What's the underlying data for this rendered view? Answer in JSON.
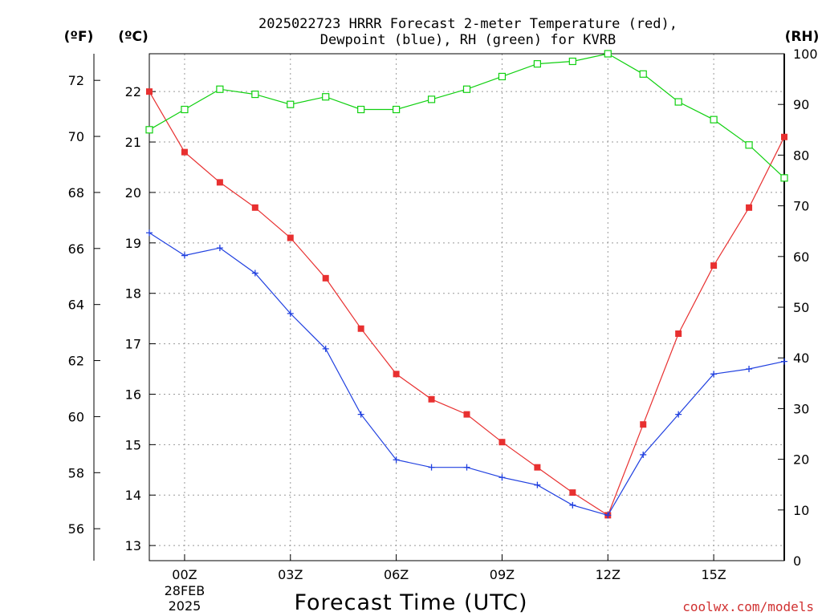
{
  "chart_data": {
    "type": "line",
    "title_line1": "2025022723 HRRR Forecast 2-meter Temperature (red),",
    "title_line2": "Dewpoint (blue), RH (green) for KVRB",
    "xlabel": "Forecast Time (UTC)",
    "credit": "coolwx.com/models",
    "unit_f": "(ºF)",
    "unit_c": "(ºC)",
    "unit_rh": "(RH)",
    "x_hours": [
      -1,
      0,
      1,
      2,
      3,
      4,
      5,
      6,
      7,
      8,
      9,
      10,
      11,
      12,
      13,
      14,
      15,
      16,
      17
    ],
    "x_range": [
      -1,
      17
    ],
    "x_ticks": [
      {
        "hour": 0,
        "label": "00Z",
        "sub1": "28FEB",
        "sub2": "2025"
      },
      {
        "hour": 3,
        "label": "03Z"
      },
      {
        "hour": 6,
        "label": "06Z"
      },
      {
        "hour": 9,
        "label": "09Z"
      },
      {
        "hour": 12,
        "label": "12Z"
      },
      {
        "hour": 15,
        "label": "15Z"
      }
    ],
    "c_range": [
      12.7,
      22.75
    ],
    "c_ticks": [
      13,
      14,
      15,
      16,
      17,
      18,
      19,
      20,
      21,
      22
    ],
    "f_ticks": [
      56,
      58,
      60,
      62,
      64,
      66,
      68,
      70,
      72
    ],
    "rh_range": [
      0,
      100
    ],
    "rh_ticks": [
      0,
      10,
      20,
      30,
      40,
      50,
      60,
      70,
      80,
      90,
      100
    ],
    "colors": {
      "temperature": "#e83030",
      "dewpoint": "#2040e0",
      "rh": "#10d010",
      "axis": "#000000"
    },
    "series": [
      {
        "key": "temperature",
        "values": [
          22.0,
          20.8,
          20.2,
          19.7,
          19.1,
          18.3,
          17.3,
          16.4,
          15.9,
          15.6,
          15.05,
          14.55,
          14.05,
          13.6,
          15.4,
          17.2,
          18.55,
          19.7,
          21.1
        ]
      },
      {
        "key": "dewpoint",
        "values": [
          19.2,
          18.75,
          18.9,
          18.4,
          17.6,
          16.9,
          15.6,
          14.7,
          14.55,
          14.55,
          14.35,
          14.2,
          13.8,
          13.6,
          14.8,
          15.6,
          16.4,
          16.5,
          16.65
        ]
      },
      {
        "key": "rh",
        "values": [
          85,
          89,
          93,
          92,
          90,
          91.5,
          89,
          89,
          91,
          93,
          95.5,
          98,
          98.5,
          100,
          96,
          90.5,
          87,
          82,
          75.5
        ]
      }
    ]
  }
}
